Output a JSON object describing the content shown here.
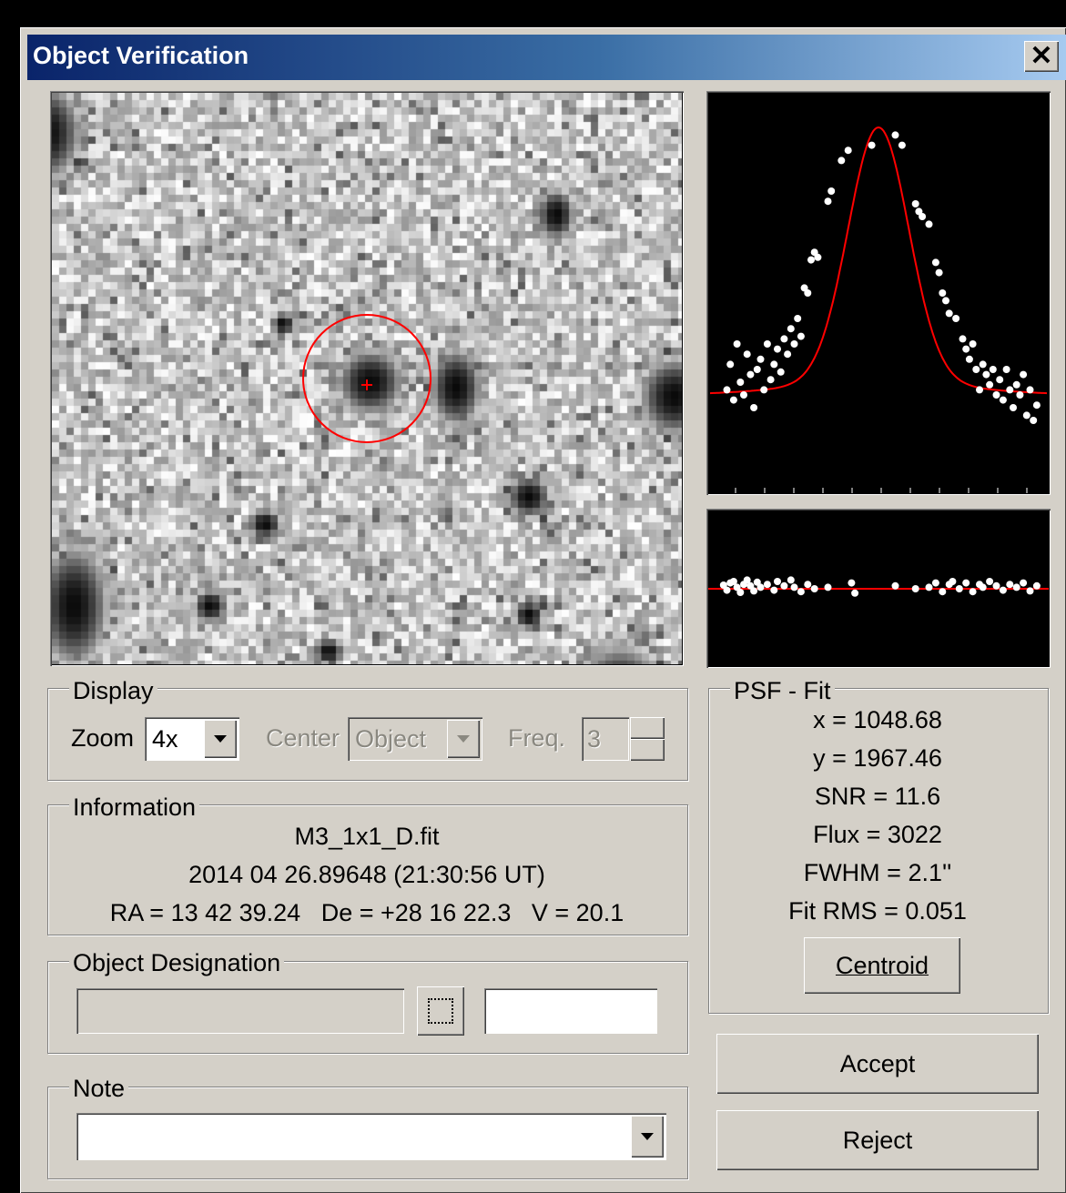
{
  "window": {
    "title": "Object Verification",
    "close_glyph": "✕"
  },
  "psf_plot": {
    "fit_color": "#ff0000",
    "points": [
      [
        -0.9,
        0.12
      ],
      [
        -0.88,
        0.22
      ],
      [
        -0.86,
        0.08
      ],
      [
        -0.84,
        0.3
      ],
      [
        -0.82,
        0.15
      ],
      [
        -0.8,
        0.1
      ],
      [
        -0.78,
        0.26
      ],
      [
        -0.76,
        0.18
      ],
      [
        -0.74,
        0.05
      ],
      [
        -0.72,
        0.2
      ],
      [
        -0.7,
        0.24
      ],
      [
        -0.68,
        0.12
      ],
      [
        -0.66,
        0.3
      ],
      [
        -0.64,
        0.16
      ],
      [
        -0.62,
        0.22
      ],
      [
        -0.6,
        0.28
      ],
      [
        -0.58,
        0.19
      ],
      [
        -0.56,
        0.32
      ],
      [
        -0.54,
        0.26
      ],
      [
        -0.52,
        0.36
      ],
      [
        -0.5,
        0.3
      ],
      [
        -0.48,
        0.4
      ],
      [
        -0.46,
        0.33
      ],
      [
        -0.44,
        0.52
      ],
      [
        -0.42,
        0.5
      ],
      [
        -0.4,
        0.63
      ],
      [
        -0.38,
        0.66
      ],
      [
        -0.36,
        0.64
      ],
      [
        -0.3,
        0.86
      ],
      [
        -0.28,
        0.9
      ],
      [
        -0.22,
        1.02
      ],
      [
        -0.18,
        1.06
      ],
      [
        -0.04,
        1.08
      ],
      [
        0.1,
        1.12
      ],
      [
        0.14,
        1.08
      ],
      [
        0.22,
        0.85
      ],
      [
        0.24,
        0.82
      ],
      [
        0.26,
        0.8
      ],
      [
        0.3,
        0.77
      ],
      [
        0.34,
        0.62
      ],
      [
        0.36,
        0.58
      ],
      [
        0.38,
        0.5
      ],
      [
        0.4,
        0.47
      ],
      [
        0.42,
        0.42
      ],
      [
        0.46,
        0.4
      ],
      [
        0.5,
        0.32
      ],
      [
        0.52,
        0.28
      ],
      [
        0.54,
        0.24
      ],
      [
        0.56,
        0.3
      ],
      [
        0.58,
        0.2
      ],
      [
        0.6,
        0.12
      ],
      [
        0.62,
        0.22
      ],
      [
        0.64,
        0.18
      ],
      [
        0.66,
        0.14
      ],
      [
        0.68,
        0.2
      ],
      [
        0.7,
        0.1
      ],
      [
        0.72,
        0.16
      ],
      [
        0.74,
        0.08
      ],
      [
        0.76,
        0.2
      ],
      [
        0.78,
        0.12
      ],
      [
        0.8,
        0.05
      ],
      [
        0.82,
        0.14
      ],
      [
        0.84,
        0.1
      ],
      [
        0.86,
        0.18
      ],
      [
        0.88,
        0.02
      ],
      [
        0.9,
        0.12
      ],
      [
        0.92,
        0.0
      ],
      [
        0.94,
        0.06
      ]
    ]
  },
  "residual_plot": {
    "points": [
      [
        -0.92,
        0.05
      ],
      [
        -0.9,
        -0.02
      ],
      [
        -0.88,
        0.08
      ],
      [
        -0.86,
        0.1
      ],
      [
        -0.84,
        0.02
      ],
      [
        -0.82,
        -0.05
      ],
      [
        -0.8,
        0.06
      ],
      [
        -0.78,
        0.12
      ],
      [
        -0.76,
        0.04
      ],
      [
        -0.74,
        -0.03
      ],
      [
        -0.72,
        0.09
      ],
      [
        -0.7,
        0.02
      ],
      [
        -0.66,
        0.06
      ],
      [
        -0.62,
        -0.02
      ],
      [
        -0.6,
        0.1
      ],
      [
        -0.56,
        0.04
      ],
      [
        -0.52,
        0.12
      ],
      [
        -0.5,
        0.02
      ],
      [
        -0.46,
        -0.04
      ],
      [
        -0.42,
        0.06
      ],
      [
        -0.38,
        0.0
      ],
      [
        -0.3,
        0.02
      ],
      [
        -0.16,
        0.08
      ],
      [
        -0.14,
        -0.06
      ],
      [
        0.1,
        0.04
      ],
      [
        0.22,
        0.0
      ],
      [
        0.3,
        0.02
      ],
      [
        0.34,
        0.08
      ],
      [
        0.38,
        -0.04
      ],
      [
        0.42,
        0.06
      ],
      [
        0.44,
        0.1
      ],
      [
        0.48,
        0.0
      ],
      [
        0.52,
        0.08
      ],
      [
        0.56,
        -0.04
      ],
      [
        0.6,
        0.06
      ],
      [
        0.62,
        0.02
      ],
      [
        0.66,
        0.1
      ],
      [
        0.7,
        0.04
      ],
      [
        0.74,
        -0.02
      ],
      [
        0.78,
        0.06
      ],
      [
        0.82,
        0.02
      ],
      [
        0.86,
        0.08
      ],
      [
        0.9,
        -0.03
      ],
      [
        0.94,
        0.04
      ]
    ]
  },
  "display": {
    "legend": "Display",
    "zoom_label": "Zoom",
    "zoom_value": "4x",
    "center_label": "Center",
    "center_value": "Object",
    "freq_label": "Freq.",
    "freq_value": "3"
  },
  "information": {
    "legend": "Information",
    "file": "M3_1x1_D.fit",
    "datetime": "2014 04 26.89648 (21:30:56 UT)",
    "coords": "RA = 13 42 39.24   De = +28 16 22.3   V = 20.1"
  },
  "designation": {
    "legend": "Object Designation",
    "value": "",
    "extra_value": ""
  },
  "note": {
    "legend": "Note",
    "value": ""
  },
  "psf_fit": {
    "legend": "PSF - Fit",
    "x": "x = 1048.68",
    "y": "y = 1967.46",
    "snr": "SNR = 11.6",
    "flux": "Flux = 3022",
    "fwhm": "FWHM = 2.1''",
    "fit_rms": "Fit RMS = 0.051",
    "centroid_label": "Centroid"
  },
  "buttons": {
    "accept_label": "Accept",
    "reject_label": "Reject"
  }
}
